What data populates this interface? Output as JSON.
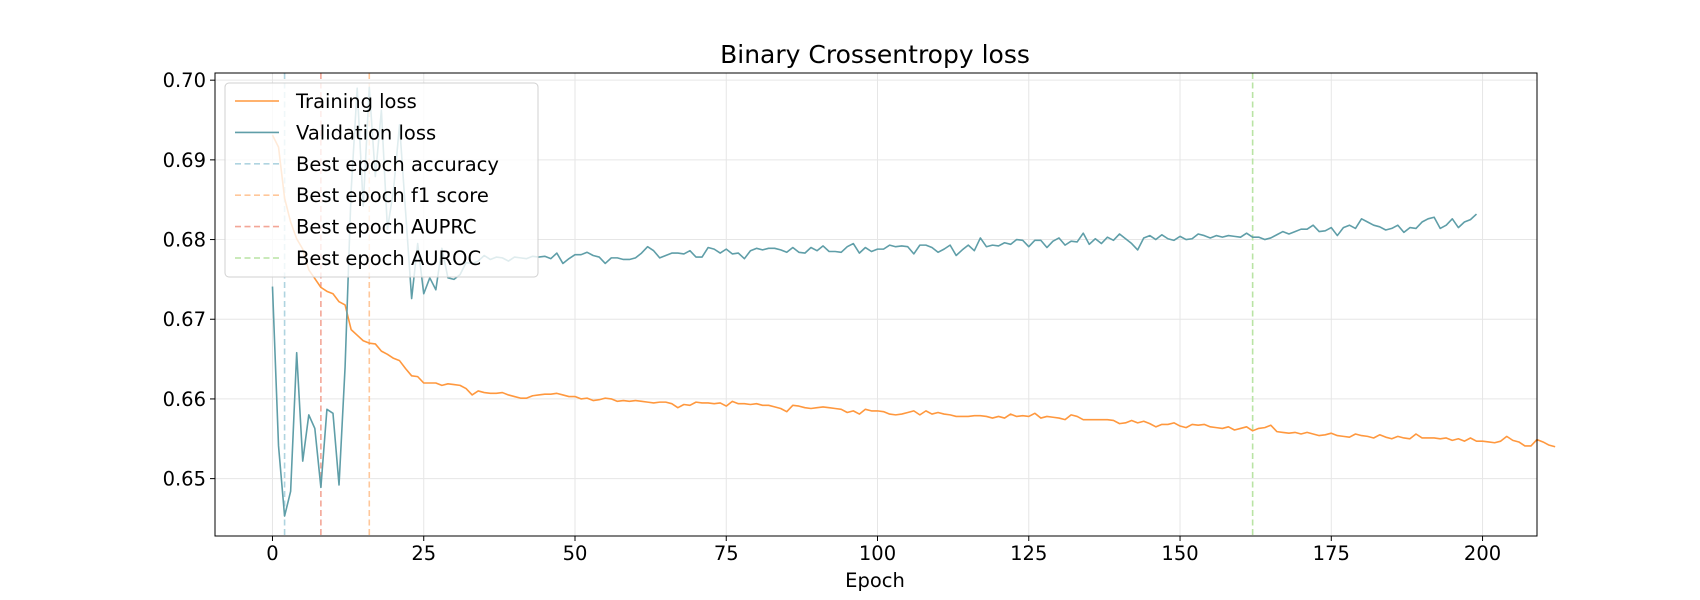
{
  "chart_data": {
    "type": "line",
    "title": "Binary Crossentropy loss",
    "xlabel": "Epoch",
    "ylabel": "",
    "xlim": [
      -9.5,
      209
    ],
    "ylim": [
      0.6428,
      0.7009
    ],
    "xticks": [
      0,
      25,
      50,
      75,
      100,
      125,
      150,
      175,
      200
    ],
    "yticks": [
      0.65,
      0.66,
      0.67,
      0.68,
      0.69,
      0.7
    ],
    "xtick_labels": [
      "0",
      "25",
      "50",
      "75",
      "100",
      "125",
      "150",
      "175",
      "200"
    ],
    "ytick_labels": [
      "0.65",
      "0.66",
      "0.67",
      "0.68",
      "0.69",
      "0.70"
    ],
    "grid": true,
    "legend_position": "top-left",
    "series": [
      {
        "name": "Training loss",
        "color": "#ff983e",
        "style": "solid",
        "x_start": 0,
        "values": [
          0.6931,
          0.6916,
          0.6852,
          0.6822,
          0.6801,
          0.6788,
          0.6762,
          0.6751,
          0.674,
          0.6735,
          0.6732,
          0.6722,
          0.6718,
          0.6687,
          0.668,
          0.6673,
          0.667,
          0.6669,
          0.666,
          0.6656,
          0.6651,
          0.6648,
          0.6638,
          0.6629,
          0.6628,
          0.662,
          0.662,
          0.662,
          0.6617,
          0.6619,
          0.6618,
          0.6617,
          0.6613,
          0.6605,
          0.661,
          0.6608,
          0.6607,
          0.6607,
          0.6608,
          0.6605,
          0.6603,
          0.6601,
          0.6601,
          0.6604,
          0.6605,
          0.6606,
          0.6606,
          0.6607,
          0.6605,
          0.6603,
          0.6603,
          0.66,
          0.6601,
          0.6598,
          0.6599,
          0.6601,
          0.66,
          0.6597,
          0.6598,
          0.6597,
          0.6598,
          0.6597,
          0.6596,
          0.6595,
          0.6596,
          0.6596,
          0.6594,
          0.6589,
          0.6593,
          0.6592,
          0.6596,
          0.6595,
          0.6595,
          0.6594,
          0.6595,
          0.6591,
          0.6597,
          0.6594,
          0.6594,
          0.6593,
          0.6594,
          0.6592,
          0.6592,
          0.659,
          0.6588,
          0.6584,
          0.6592,
          0.6591,
          0.6589,
          0.6588,
          0.6589,
          0.659,
          0.6589,
          0.6588,
          0.6587,
          0.6583,
          0.6585,
          0.6581,
          0.6587,
          0.6585,
          0.6585,
          0.6584,
          0.6581,
          0.658,
          0.6581,
          0.6583,
          0.6585,
          0.658,
          0.6585,
          0.6581,
          0.6583,
          0.6581,
          0.658,
          0.6578,
          0.6578,
          0.6578,
          0.6579,
          0.6579,
          0.6578,
          0.6576,
          0.6578,
          0.6576,
          0.6581,
          0.6578,
          0.6579,
          0.6578,
          0.6582,
          0.6576,
          0.6578,
          0.6577,
          0.6576,
          0.6574,
          0.658,
          0.6578,
          0.6574,
          0.6574,
          0.6574,
          0.6574,
          0.6574,
          0.6573,
          0.6569,
          0.657,
          0.6573,
          0.657,
          0.6572,
          0.6569,
          0.6565,
          0.6568,
          0.6568,
          0.657,
          0.6566,
          0.6564,
          0.6568,
          0.6567,
          0.6568,
          0.6565,
          0.6564,
          0.6563,
          0.6565,
          0.6561,
          0.6563,
          0.6565,
          0.656,
          0.6563,
          0.6564,
          0.6567,
          0.6559,
          0.6558,
          0.6557,
          0.6558,
          0.6556,
          0.6558,
          0.6556,
          0.6554,
          0.6555,
          0.6557,
          0.6554,
          0.6553,
          0.6552,
          0.6556,
          0.6554,
          0.6553,
          0.6551,
          0.6555,
          0.6552,
          0.655,
          0.6553,
          0.6551,
          0.655,
          0.6556,
          0.6551,
          0.6551,
          0.6551,
          0.655,
          0.6551,
          0.6548,
          0.655,
          0.6547,
          0.6551,
          0.6547,
          0.6547,
          0.6546,
          0.6545,
          0.6547,
          0.6553,
          0.6548,
          0.6546,
          0.6541,
          0.6541,
          0.6549,
          0.6546,
          0.6542,
          0.654
        ]
      },
      {
        "name": "Validation loss",
        "color": "#5f9ea8",
        "style": "solid",
        "x_start": 0,
        "values": [
          0.6741,
          0.6541,
          0.6453,
          0.6484,
          0.6658,
          0.6522,
          0.658,
          0.6563,
          0.6489,
          0.6587,
          0.6582,
          0.6492,
          0.664,
          0.6861,
          0.699,
          0.6842,
          0.6991,
          0.6879,
          0.6962,
          0.6813,
          0.6862,
          0.6944,
          0.6835,
          0.6726,
          0.6795,
          0.6732,
          0.6752,
          0.6737,
          0.6789,
          0.6752,
          0.675,
          0.6756,
          0.6771,
          0.677,
          0.6773,
          0.678,
          0.6775,
          0.6778,
          0.6777,
          0.6773,
          0.6778,
          0.6777,
          0.6776,
          0.6779,
          0.6778,
          0.6779,
          0.6776,
          0.6783,
          0.677,
          0.6776,
          0.6781,
          0.6781,
          0.6784,
          0.678,
          0.6778,
          0.677,
          0.6777,
          0.6777,
          0.6775,
          0.6775,
          0.6777,
          0.6783,
          0.6791,
          0.6786,
          0.6777,
          0.678,
          0.6783,
          0.6783,
          0.6782,
          0.6786,
          0.6778,
          0.6778,
          0.679,
          0.6788,
          0.6783,
          0.6788,
          0.6782,
          0.6783,
          0.6776,
          0.6786,
          0.6789,
          0.6787,
          0.6789,
          0.6789,
          0.6787,
          0.6784,
          0.679,
          0.6784,
          0.6783,
          0.679,
          0.6786,
          0.6792,
          0.6785,
          0.6785,
          0.6784,
          0.6791,
          0.6795,
          0.6783,
          0.679,
          0.6785,
          0.6788,
          0.6788,
          0.6793,
          0.6791,
          0.6792,
          0.6791,
          0.6782,
          0.6793,
          0.6793,
          0.679,
          0.6784,
          0.6788,
          0.6793,
          0.678,
          0.6787,
          0.6793,
          0.6786,
          0.6802,
          0.6791,
          0.6793,
          0.6792,
          0.6796,
          0.6794,
          0.68,
          0.6799,
          0.6791,
          0.6799,
          0.6799,
          0.679,
          0.6798,
          0.6802,
          0.6793,
          0.6798,
          0.6797,
          0.6808,
          0.6794,
          0.6801,
          0.6795,
          0.6803,
          0.6799,
          0.6807,
          0.6801,
          0.6795,
          0.6787,
          0.6802,
          0.6805,
          0.68,
          0.6806,
          0.6801,
          0.6799,
          0.6804,
          0.68,
          0.6801,
          0.6807,
          0.6805,
          0.6802,
          0.6805,
          0.6803,
          0.6805,
          0.6804,
          0.6803,
          0.6808,
          0.6803,
          0.6803,
          0.68,
          0.6802,
          0.6806,
          0.681,
          0.6807,
          0.681,
          0.6813,
          0.6813,
          0.6818,
          0.681,
          0.6811,
          0.6815,
          0.6805,
          0.6815,
          0.6818,
          0.6814,
          0.6826,
          0.6822,
          0.6818,
          0.6816,
          0.6812,
          0.6814,
          0.6818,
          0.6809,
          0.6815,
          0.6814,
          0.6822,
          0.6826,
          0.6828,
          0.6814,
          0.6818,
          0.6826,
          0.6815,
          0.6822,
          0.6825,
          0.6832
        ]
      }
    ],
    "vlines": [
      {
        "name": "Best epoch accuracy",
        "x": 2,
        "color": "#afd4e0",
        "style": "dashed"
      },
      {
        "name": "Best epoch f1 score",
        "x": 16,
        "color": "#ffc79a",
        "style": "dashed"
      },
      {
        "name": "Best epoch AUPRC",
        "x": 8,
        "color": "#f3a697",
        "style": "dashed"
      },
      {
        "name": "Best epoch AUROC",
        "x": 162,
        "color": "#b9e4a4",
        "style": "dashed"
      }
    ]
  }
}
